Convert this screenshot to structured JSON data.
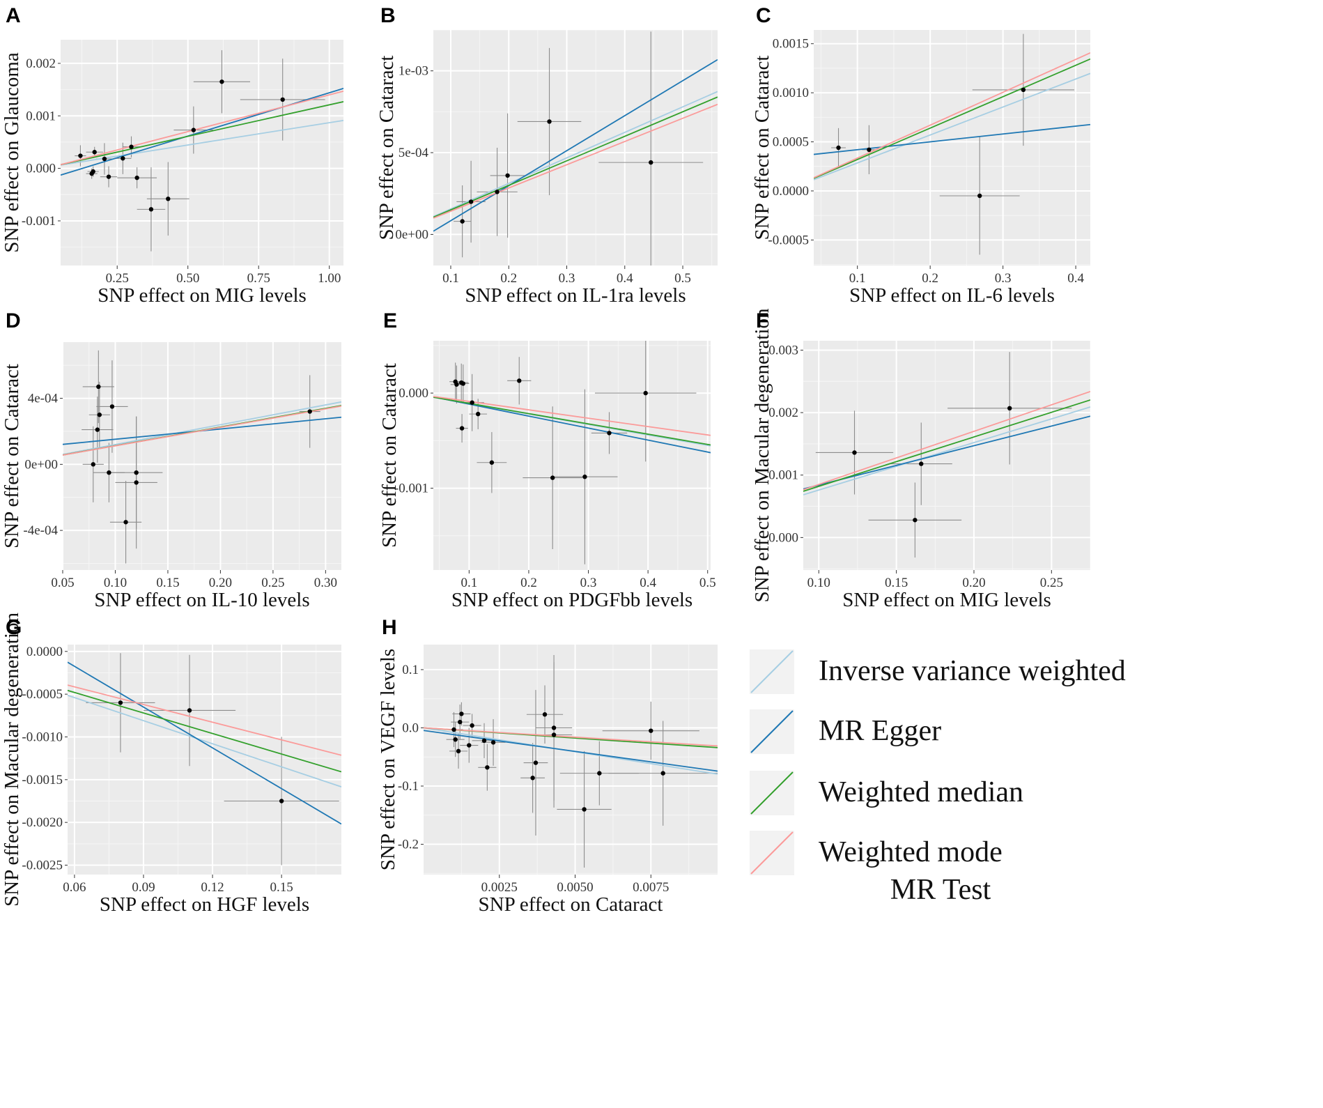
{
  "colors": {
    "panel_bg": "#ebebeb",
    "grid": "#ffffff",
    "point": "#000000",
    "errorbar": "#8c8c8c",
    "ivw": "#a6cee3",
    "egger": "#1f78b4",
    "median": "#33a02c",
    "mode": "#fb9a99"
  },
  "legend": {
    "title": "MR Test",
    "items": [
      {
        "key": "ivw",
        "label": "Inverse variance weighted"
      },
      {
        "key": "egger",
        "label": "MR Egger"
      },
      {
        "key": "median",
        "label": "Weighted median"
      },
      {
        "key": "mode",
        "label": "Weighted mode"
      }
    ]
  },
  "chart_data": [
    {
      "id": "A",
      "type": "scatter",
      "xlabel": "SNP effect on MIG levels",
      "ylabel": "SNP effect on Glaucoma",
      "xlim": [
        0.05,
        1.05
      ],
      "ylim": [
        -0.00185,
        0.00245
      ],
      "xticks": [
        0.25,
        0.5,
        0.75,
        1.0
      ],
      "xtick_labels": [
        "0.25",
        "0.50",
        "0.75",
        "1.00"
      ],
      "yticks": [
        -0.001,
        0.0,
        0.001,
        0.002
      ],
      "ytick_labels": [
        "-0.001",
        "0.000",
        "0.001",
        "0.002"
      ],
      "points": [
        {
          "x": 0.12,
          "y": 0.00024,
          "xe": 0.02,
          "ye": 0.0002
        },
        {
          "x": 0.16,
          "y": -0.0001,
          "xe": 0.02,
          "ye": 0.0001
        },
        {
          "x": 0.165,
          "y": -6e-05,
          "xe": 0.02,
          "ye": 0.0001
        },
        {
          "x": 0.17,
          "y": 0.00031,
          "xe": 0.03,
          "ye": 0.0001
        },
        {
          "x": 0.205,
          "y": 0.00018,
          "xe": 0.03,
          "ye": 0.0003
        },
        {
          "x": 0.22,
          "y": -0.00016,
          "xe": 0.03,
          "ye": 0.0002
        },
        {
          "x": 0.27,
          "y": 0.00019,
          "xe": 0.03,
          "ye": 0.0003
        },
        {
          "x": 0.3,
          "y": 0.00041,
          "xe": 0.03,
          "ye": 0.0002
        },
        {
          "x": 0.32,
          "y": -0.00018,
          "xe": 0.07,
          "ye": 0.0002
        },
        {
          "x": 0.37,
          "y": -0.00078,
          "xe": 0.05,
          "ye": 0.0008
        },
        {
          "x": 0.43,
          "y": -0.00058,
          "xe": 0.075,
          "ye": 0.0007
        },
        {
          "x": 0.52,
          "y": 0.00073,
          "xe": 0.07,
          "ye": 0.00045
        },
        {
          "x": 0.62,
          "y": 0.00165,
          "xe": 0.1,
          "ye": 0.0006
        },
        {
          "x": 0.835,
          "y": 0.00131,
          "xe": 0.15,
          "ye": 0.00078
        }
      ],
      "lines": {
        "ivw": {
          "slope": 0.00085,
          "intercept": 2e-05
        },
        "egger": {
          "slope": 0.00165,
          "intercept": -0.00021
        },
        "median": {
          "slope": 0.0012,
          "intercept": 1e-05
        },
        "mode": {
          "slope": 0.0014,
          "intercept": 0.0
        }
      }
    },
    {
      "id": "B",
      "type": "scatter",
      "xlabel": "SNP effect on IL-1ra levels",
      "ylabel": "SNP effect on Cataract",
      "xlim": [
        0.07,
        0.56
      ],
      "ylim": [
        -0.00019,
        0.00125
      ],
      "xticks": [
        0.1,
        0.2,
        0.3,
        0.4,
        0.5
      ],
      "xtick_labels": [
        "0.1",
        "0.2",
        "0.3",
        "0.4",
        "0.5"
      ],
      "yticks": [
        0.0,
        0.0005,
        0.001
      ],
      "ytick_labels": [
        "0e+00",
        "5e-04",
        "1e-03"
      ],
      "points": [
        {
          "x": 0.12,
          "y": 8e-05,
          "xe": 0.015,
          "ye": 0.00022
        },
        {
          "x": 0.135,
          "y": 0.0002,
          "xe": 0.025,
          "ye": 0.00025
        },
        {
          "x": 0.18,
          "y": 0.00026,
          "xe": 0.035,
          "ye": 0.00027
        },
        {
          "x": 0.198,
          "y": 0.00036,
          "xe": 0.03,
          "ye": 0.00038
        },
        {
          "x": 0.27,
          "y": 0.00069,
          "xe": 0.055,
          "ye": 0.00045
        },
        {
          "x": 0.445,
          "y": 0.00044,
          "xe": 0.09,
          "ye": 0.0008
        }
      ],
      "lines": {
        "ivw": {
          "slope": 0.00156,
          "intercept": 0.0
        },
        "egger": {
          "slope": 0.00214,
          "intercept": -0.00013
        },
        "median": {
          "slope": 0.0015,
          "intercept": 0.0
        },
        "mode": {
          "slope": 0.00142,
          "intercept": 0.0
        }
      }
    },
    {
      "id": "C",
      "type": "scatter",
      "xlabel": "SNP effect on IL-6 levels",
      "ylabel": "SNP effect on Cataract",
      "xlim": [
        0.04,
        0.42
      ],
      "ylim": [
        -0.00076,
        0.00164
      ],
      "xticks": [
        0.1,
        0.2,
        0.3,
        0.4
      ],
      "xtick_labels": [
        "0.1",
        "0.2",
        "0.3",
        "0.4"
      ],
      "yticks": [
        -0.0005,
        0.0,
        0.0005,
        0.001,
        0.0015
      ],
      "ytick_labels": [
        "-0.0005",
        "0.0000",
        "0.0005",
        "0.0010",
        "0.0015"
      ],
      "points": [
        {
          "x": 0.074,
          "y": 0.00044,
          "xe": 0.01,
          "ye": 0.0002
        },
        {
          "x": 0.116,
          "y": 0.00042,
          "xe": 0.01,
          "ye": 0.00025
        },
        {
          "x": 0.268,
          "y": -5e-05,
          "xe": 0.055,
          "ye": 0.0006
        },
        {
          "x": 0.328,
          "y": 0.00103,
          "xe": 0.07,
          "ye": 0.00057
        }
      ],
      "lines": {
        "ivw": {
          "slope": 0.00285,
          "intercept": 0.0
        },
        "egger": {
          "slope": 0.0008,
          "intercept": 0.00034
        },
        "median": {
          "slope": 0.0032,
          "intercept": 0.0
        },
        "mode": {
          "slope": 0.00335,
          "intercept": 0.0
        }
      }
    },
    {
      "id": "D",
      "type": "scatter",
      "xlabel": "SNP effect on IL-10 levels",
      "ylabel": "SNP effect on Cataract",
      "xlim": [
        0.05,
        0.315
      ],
      "ylim": [
        -0.00064,
        0.00074
      ],
      "xticks": [
        0.05,
        0.1,
        0.15,
        0.2,
        0.25,
        0.3
      ],
      "xtick_labels": [
        "0.05",
        "0.10",
        "0.15",
        "0.20",
        "0.25",
        "0.30"
      ],
      "yticks": [
        -0.0004,
        0.0,
        0.0004
      ],
      "ytick_labels": [
        "-4e-04",
        "0e+00",
        "4e-04"
      ],
      "points": [
        {
          "x": 0.079,
          "y": 0.0,
          "xe": 0.01,
          "ye": 0.00023
        },
        {
          "x": 0.083,
          "y": 0.00021,
          "xe": 0.015,
          "ye": 0.0002
        },
        {
          "x": 0.084,
          "y": 0.00047,
          "xe": 0.015,
          "ye": 0.00022
        },
        {
          "x": 0.085,
          "y": 0.0003,
          "xe": 0.01,
          "ye": 0.0002
        },
        {
          "x": 0.094,
          "y": -5e-05,
          "xe": 0.015,
          "ye": 0.00018
        },
        {
          "x": 0.097,
          "y": 0.00035,
          "xe": 0.015,
          "ye": 0.00028
        },
        {
          "x": 0.11,
          "y": -0.00035,
          "xe": 0.015,
          "ye": 0.00025
        },
        {
          "x": 0.12,
          "y": -5e-05,
          "xe": 0.025,
          "ye": 0.00034
        },
        {
          "x": 0.12,
          "y": -0.00011,
          "xe": 0.02,
          "ye": 0.0004
        },
        {
          "x": 0.285,
          "y": 0.00032,
          "xe": 0.01,
          "ye": 0.00022
        }
      ],
      "lines": {
        "ivw": {
          "slope": 0.0012,
          "intercept": 0.0
        },
        "egger": {
          "slope": 0.00062,
          "intercept": 9e-05
        },
        "median": {
          "slope": 0.00113,
          "intercept": 0.0
        },
        "mode": {
          "slope": 0.00112,
          "intercept": 0.0
        }
      }
    },
    {
      "id": "E",
      "type": "scatter",
      "xlabel": "SNP effect on PDGFbb levels",
      "ylabel": "SNP effect on Cataract",
      "xlim": [
        0.04,
        0.505
      ],
      "ylim": [
        -0.00186,
        0.00055
      ],
      "xticks": [
        0.1,
        0.2,
        0.3,
        0.4,
        0.5
      ],
      "xtick_labels": [
        "0.1",
        "0.2",
        "0.3",
        "0.4",
        "0.5"
      ],
      "yticks": [
        -0.001,
        0.0
      ],
      "ytick_labels": [
        "-0.001",
        "0.000"
      ],
      "points": [
        {
          "x": 0.077,
          "y": 0.00012,
          "xe": 0.01,
          "ye": 0.0002
        },
        {
          "x": 0.079,
          "y": 9e-05,
          "xe": 0.01,
          "ye": 0.0002
        },
        {
          "x": 0.087,
          "y": 0.00011,
          "xe": 0.012,
          "ye": 0.0002
        },
        {
          "x": 0.09,
          "y": 0.0001,
          "xe": 0.01,
          "ye": 0.0002
        },
        {
          "x": 0.088,
          "y": -0.00037,
          "xe": 0.01,
          "ye": 0.00015
        },
        {
          "x": 0.105,
          "y": -0.0001,
          "xe": 0.02,
          "ye": 0.0003
        },
        {
          "x": 0.115,
          "y": -0.00022,
          "xe": 0.015,
          "ye": 0.00016
        },
        {
          "x": 0.138,
          "y": -0.00073,
          "xe": 0.025,
          "ye": 0.00032
        },
        {
          "x": 0.184,
          "y": 0.00013,
          "xe": 0.02,
          "ye": 0.00025
        },
        {
          "x": 0.24,
          "y": -0.00089,
          "xe": 0.05,
          "ye": 0.00075
        },
        {
          "x": 0.294,
          "y": -0.00088,
          "xe": 0.055,
          "ye": 0.00092
        },
        {
          "x": 0.335,
          "y": -0.00042,
          "xe": 0.03,
          "ye": 0.00022
        },
        {
          "x": 0.396,
          "y": 0.0,
          "xe": 0.085,
          "ye": 0.00072
        }
      ],
      "lines": {
        "ivw": {
          "slope": -0.0011,
          "intercept": 0.0
        },
        "egger": {
          "slope": -0.00126,
          "intercept": 1e-05
        },
        "median": {
          "slope": -0.00108,
          "intercept": 0.0
        },
        "mode": {
          "slope": -0.00088,
          "intercept": 0.0
        }
      }
    },
    {
      "id": "F",
      "type": "scatter",
      "xlabel": "SNP effect on MIG levels",
      "ylabel": "SNP effect on Macular degeneration",
      "xlim": [
        0.09,
        0.275
      ],
      "ylim": [
        -0.00052,
        0.00315
      ],
      "xticks": [
        0.1,
        0.15,
        0.2,
        0.25
      ],
      "xtick_labels": [
        "0.10",
        "0.15",
        "0.20",
        "0.25"
      ],
      "yticks": [
        0.0,
        0.001,
        0.002,
        0.003
      ],
      "ytick_labels": [
        "0.000",
        "0.001",
        "0.002",
        "0.003"
      ],
      "points": [
        {
          "x": 0.123,
          "y": 0.00136,
          "xe": 0.025,
          "ye": 0.00067
        },
        {
          "x": 0.162,
          "y": 0.00028,
          "xe": 0.03,
          "ye": 0.0006
        },
        {
          "x": 0.166,
          "y": 0.00118,
          "xe": 0.02,
          "ye": 0.00066
        },
        {
          "x": 0.223,
          "y": 0.00207,
          "xe": 0.04,
          "ye": 0.0009
        }
      ],
      "lines": {
        "ivw": {
          "slope": 0.0076,
          "intercept": 0.0
        },
        "egger": {
          "slope": 0.0063,
          "intercept": 0.00021
        },
        "median": {
          "slope": 0.0079,
          "intercept": 3e-05
        },
        "mode": {
          "slope": 0.0085,
          "intercept": 0.0
        }
      }
    },
    {
      "id": "G",
      "type": "scatter",
      "xlabel": "SNP effect on HGF levels",
      "ylabel": "SNP effect on Macular degeneration",
      "xlim": [
        0.057,
        0.176
      ],
      "ylim": [
        -0.00261,
        8e-05
      ],
      "xticks": [
        0.06,
        0.09,
        0.12,
        0.15
      ],
      "xtick_labels": [
        "0.06",
        "0.09",
        "0.12",
        "0.15"
      ],
      "yticks": [
        -0.0025,
        -0.002,
        -0.0015,
        -0.001,
        -0.0005,
        0.0
      ],
      "ytick_labels": [
        "-0.0025",
        "-0.0020",
        "-0.0015",
        "-0.0010",
        "-0.0005",
        "0.0000"
      ],
      "points": [
        {
          "x": 0.08,
          "y": -0.0006,
          "xe": 0.015,
          "ye": 0.00058
        },
        {
          "x": 0.11,
          "y": -0.00069,
          "xe": 0.02,
          "ye": 0.00065
        },
        {
          "x": 0.15,
          "y": -0.00175,
          "xe": 0.025,
          "ye": 0.00075
        }
      ],
      "lines": {
        "ivw": {
          "slope": -0.009,
          "intercept": 0.0
        },
        "egger": {
          "slope": -0.0159,
          "intercept": 0.00078
        },
        "median": {
          "slope": -0.008,
          "intercept": 0.0
        },
        "mode": {
          "slope": -0.0069,
          "intercept": 0.0
        }
      }
    },
    {
      "id": "H",
      "type": "scatter",
      "xlabel": "SNP effect on Cataract",
      "ylabel": "SNP effect on VEGF levels",
      "xlim": [
        0.0,
        0.0097
      ],
      "ylim": [
        -0.252,
        0.143
      ],
      "xticks": [
        0.0025,
        0.005,
        0.0075
      ],
      "xtick_labels": [
        "0.0025",
        "0.0050",
        "0.0075"
      ],
      "yticks": [
        -0.2,
        -0.1,
        0.0,
        0.1
      ],
      "ytick_labels": [
        "-0.2",
        "-0.1",
        "0.0",
        "0.1"
      ],
      "points": [
        {
          "x": 0.001,
          "y": -0.003,
          "xe": 0.0003,
          "ye": 0.03
        },
        {
          "x": 0.00105,
          "y": -0.02,
          "xe": 0.0003,
          "ye": 0.03
        },
        {
          "x": 0.00115,
          "y": -0.04,
          "xe": 0.0003,
          "ye": 0.03
        },
        {
          "x": 0.0012,
          "y": 0.01,
          "xe": 0.0003,
          "ye": 0.03
        },
        {
          "x": 0.00125,
          "y": 0.024,
          "xe": 0.0003,
          "ye": 0.02
        },
        {
          "x": 0.0015,
          "y": -0.03,
          "xe": 0.0003,
          "ye": 0.03
        },
        {
          "x": 0.0016,
          "y": 0.004,
          "xe": 0.0003,
          "ye": 0.02
        },
        {
          "x": 0.002,
          "y": -0.022,
          "xe": 0.0004,
          "ye": 0.03
        },
        {
          "x": 0.0021,
          "y": -0.068,
          "xe": 0.0003,
          "ye": 0.04
        },
        {
          "x": 0.0023,
          "y": -0.025,
          "xe": 0.0004,
          "ye": 0.04
        },
        {
          "x": 0.0036,
          "y": -0.086,
          "xe": 0.0004,
          "ye": 0.06
        },
        {
          "x": 0.0037,
          "y": -0.06,
          "xe": 0.0004,
          "ye": 0.125
        },
        {
          "x": 0.004,
          "y": 0.023,
          "xe": 0.0006,
          "ye": 0.05
        },
        {
          "x": 0.0043,
          "y": 0.0,
          "xe": 0.0006,
          "ye": 0.125
        },
        {
          "x": 0.0043,
          "y": -0.012,
          "xe": 0.0006,
          "ye": 0.125
        },
        {
          "x": 0.0053,
          "y": -0.14,
          "xe": 0.0009,
          "ye": 0.1
        },
        {
          "x": 0.0058,
          "y": -0.078,
          "xe": 0.0013,
          "ye": 0.055
        },
        {
          "x": 0.0075,
          "y": -0.005,
          "xe": 0.0016,
          "ye": 0.05
        },
        {
          "x": 0.0079,
          "y": -0.078,
          "xe": 0.0018,
          "ye": 0.09
        }
      ],
      "lines": {
        "ivw": {
          "slope": -8.2,
          "intercept": 0.0
        },
        "egger": {
          "slope": -7.2,
          "intercept": -0.0045
        },
        "median": {
          "slope": -3.5,
          "intercept": 0.0
        },
        "mode": {
          "slope": -3.2,
          "intercept": 0.0
        }
      }
    }
  ]
}
